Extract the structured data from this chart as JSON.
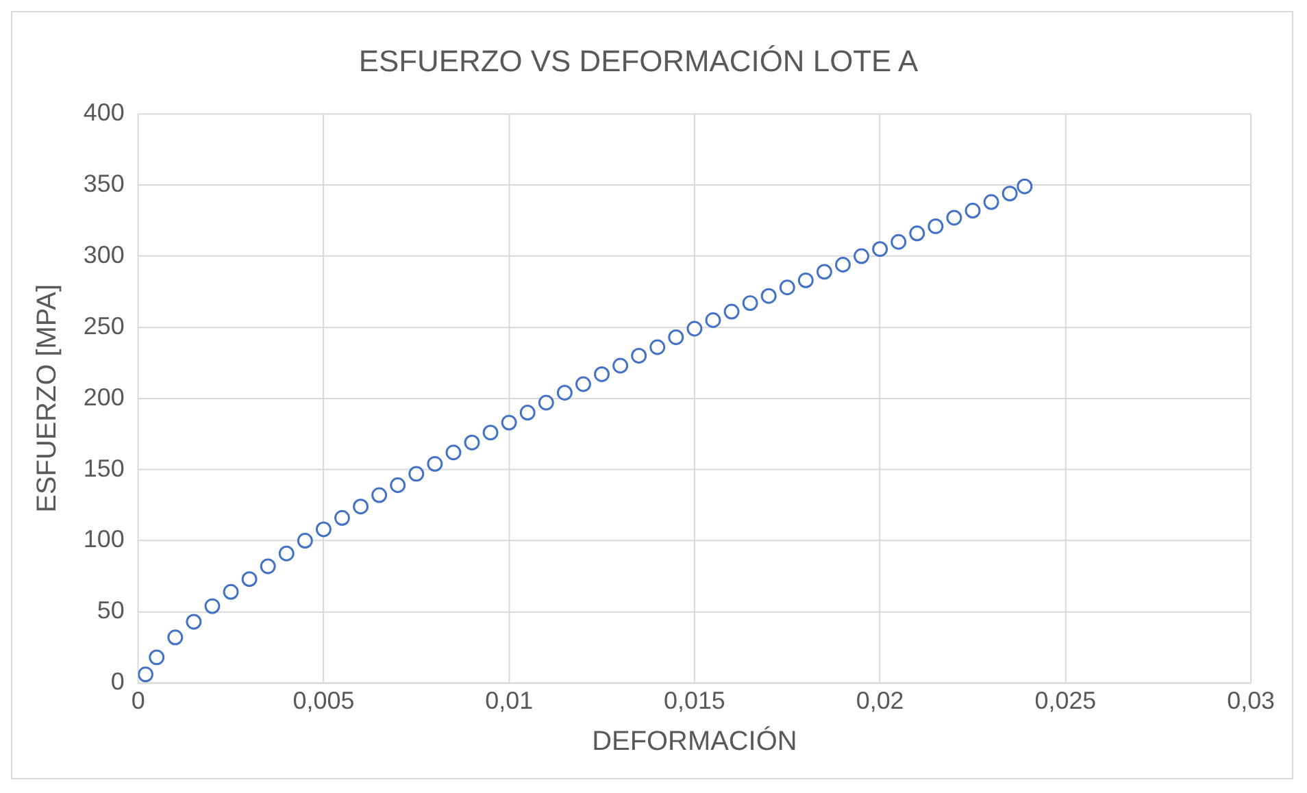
{
  "chart_data": {
    "type": "scatter",
    "title": "ESFUERZO VS DEFORMACIÓN LOTE A",
    "xlabel": "DEFORMACIÓN",
    "ylabel": "ESFUERZO [MPA]",
    "x": [
      0.0002,
      0.0005,
      0.001,
      0.0015,
      0.002,
      0.0025,
      0.003,
      0.0035,
      0.004,
      0.0045,
      0.005,
      0.0055,
      0.006,
      0.0065,
      0.007,
      0.0075,
      0.008,
      0.0085,
      0.009,
      0.0095,
      0.01,
      0.0105,
      0.011,
      0.0115,
      0.012,
      0.0125,
      0.013,
      0.0135,
      0.014,
      0.0145,
      0.015,
      0.0155,
      0.016,
      0.0165,
      0.017,
      0.0175,
      0.018,
      0.0185,
      0.019,
      0.0195,
      0.02,
      0.0205,
      0.021,
      0.0215,
      0.022,
      0.0225,
      0.023,
      0.0235,
      0.0239
    ],
    "values": [
      6,
      18,
      32,
      43,
      54,
      64,
      73,
      82,
      91,
      100,
      108,
      116,
      124,
      132,
      139,
      147,
      154,
      162,
      169,
      176,
      183,
      190,
      197,
      204,
      210,
      217,
      223,
      230,
      236,
      243,
      249,
      255,
      261,
      267,
      272,
      278,
      283,
      289,
      294,
      300,
      305,
      310,
      316,
      321,
      327,
      332,
      338,
      344,
      349
    ],
    "color": "#4472c4",
    "marker": "circle",
    "xlim": [
      0,
      0.03
    ],
    "xticks": [
      0,
      {
        "value": 0.005,
        "label": "0,005"
      },
      {
        "value": 0.01,
        "label": "0,01"
      },
      {
        "value": 0.015,
        "label": "0,015"
      },
      {
        "value": 0.02,
        "label": "0,02"
      },
      {
        "value": 0.025,
        "label": "0,025"
      },
      {
        "value": 0.03,
        "label": "0,03"
      }
    ],
    "ylim": [
      0,
      400
    ],
    "yticks": [
      0,
      50,
      100,
      150,
      200,
      250,
      300,
      350,
      400
    ],
    "grid": true,
    "legend": false
  }
}
